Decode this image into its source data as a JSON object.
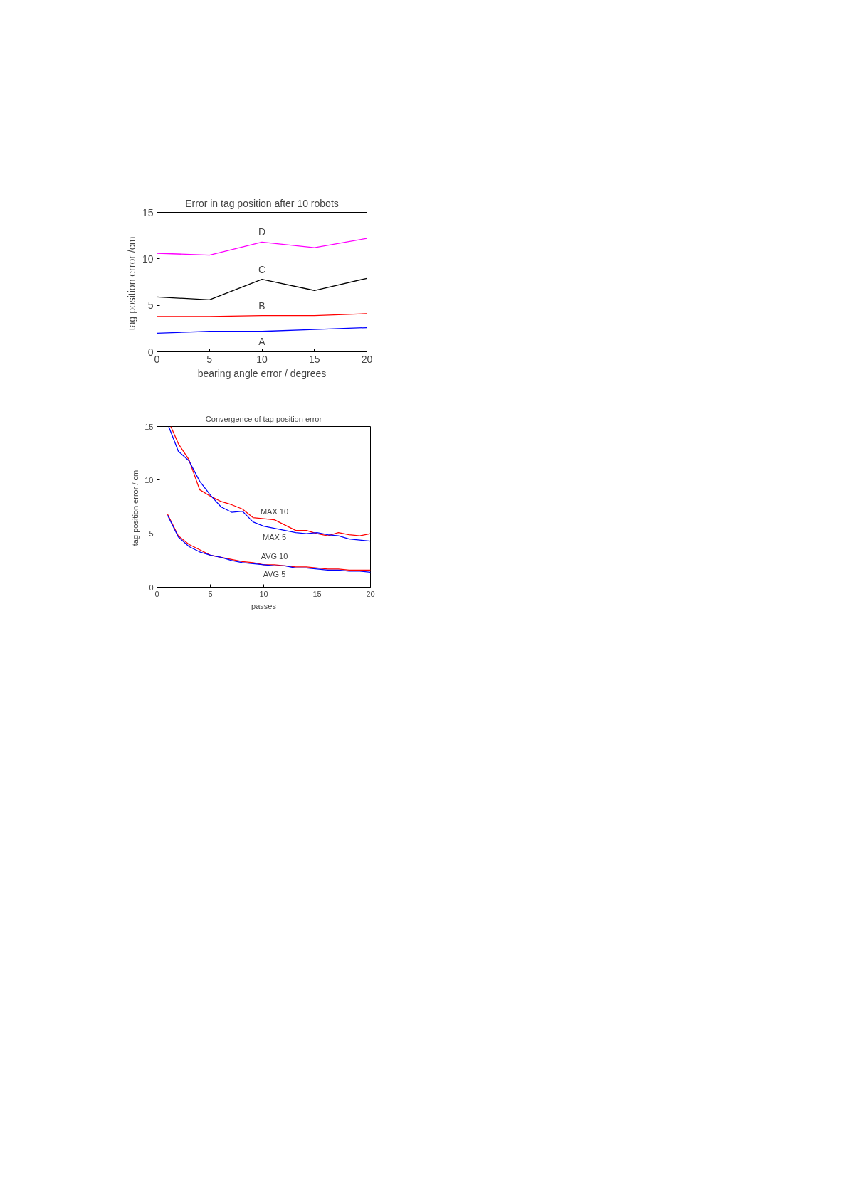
{
  "chart_data": [
    {
      "type": "line",
      "title": "Error in tag position after 10 robots",
      "xlabel": "bearing angle error / degrees",
      "ylabel": "tag position error  /cm",
      "x": [
        0,
        5,
        10,
        15,
        20
      ],
      "xlim": [
        0,
        20
      ],
      "ylim": [
        0,
        15
      ],
      "xticks": [
        0,
        5,
        10,
        15,
        20
      ],
      "yticks": [
        0,
        5,
        10,
        15
      ],
      "grid": false,
      "legend": false,
      "series": [
        {
          "name": "D",
          "color": "#ff00ff",
          "values": [
            10.6,
            10.4,
            11.8,
            11.2,
            12.2
          ]
        },
        {
          "name": "C",
          "color": "#000000",
          "values": [
            5.9,
            5.6,
            7.8,
            6.6,
            7.9
          ]
        },
        {
          "name": "B",
          "color": "#ff0000",
          "values": [
            3.8,
            3.8,
            3.9,
            3.9,
            4.1
          ]
        },
        {
          "name": "A",
          "color": "#0000ff",
          "values": [
            2.0,
            2.2,
            2.2,
            2.4,
            2.6
          ]
        }
      ]
    },
    {
      "type": "line",
      "title": "Convergence of tag position error",
      "xlabel": "passes",
      "ylabel": "tag position error  / cm",
      "xlim": [
        0,
        20
      ],
      "ylim": [
        0,
        15
      ],
      "xticks": [
        0,
        5,
        10,
        15,
        20
      ],
      "yticks": [
        0,
        5,
        10,
        15
      ],
      "grid": false,
      "legend": false,
      "series": [
        {
          "name": "MAX 10",
          "color": "#ff0000",
          "x": [
            1.3,
            2,
            3,
            4,
            5,
            6,
            7,
            8,
            9,
            10,
            11,
            12,
            13,
            14,
            15,
            16,
            17,
            18,
            19,
            20
          ],
          "values": [
            15,
            13.4,
            11.9,
            9.1,
            8.5,
            8.0,
            7.7,
            7.3,
            6.5,
            6.4,
            6.3,
            5.8,
            5.3,
            5.3,
            5.0,
            4.8,
            5.1,
            4.9,
            4.8,
            5.0
          ]
        },
        {
          "name": "MAX 5",
          "color": "#0000ff",
          "x": [
            1.1,
            2,
            3,
            4,
            5,
            6,
            7,
            8,
            9,
            10,
            11,
            12,
            13,
            14,
            15,
            16,
            17,
            18,
            19,
            20
          ],
          "values": [
            15,
            12.7,
            11.8,
            9.9,
            8.6,
            7.5,
            7.0,
            7.1,
            6.1,
            5.7,
            5.5,
            5.3,
            5.1,
            5.0,
            5.1,
            4.9,
            4.8,
            4.5,
            4.4,
            4.3
          ]
        },
        {
          "name": "AVG 10",
          "color": "#ff0000",
          "x": [
            1,
            2,
            3,
            4,
            5,
            6,
            7,
            8,
            9,
            10,
            11,
            12,
            13,
            14,
            15,
            16,
            17,
            18,
            19,
            20
          ],
          "values": [
            6.8,
            4.8,
            4.0,
            3.5,
            3.0,
            2.8,
            2.6,
            2.4,
            2.3,
            2.1,
            2.1,
            2.0,
            1.9,
            1.9,
            1.8,
            1.7,
            1.7,
            1.6,
            1.6,
            1.6
          ]
        },
        {
          "name": "AVG 5",
          "color": "#0000ff",
          "x": [
            1,
            2,
            3,
            4,
            5,
            6,
            7,
            8,
            9,
            10,
            11,
            12,
            13,
            14,
            15,
            16,
            17,
            18,
            19,
            20
          ],
          "values": [
            6.7,
            4.7,
            3.8,
            3.3,
            3.0,
            2.8,
            2.5,
            2.3,
            2.2,
            2.1,
            2.0,
            2.0,
            1.8,
            1.8,
            1.7,
            1.6,
            1.6,
            1.5,
            1.5,
            1.4
          ]
        }
      ]
    }
  ]
}
